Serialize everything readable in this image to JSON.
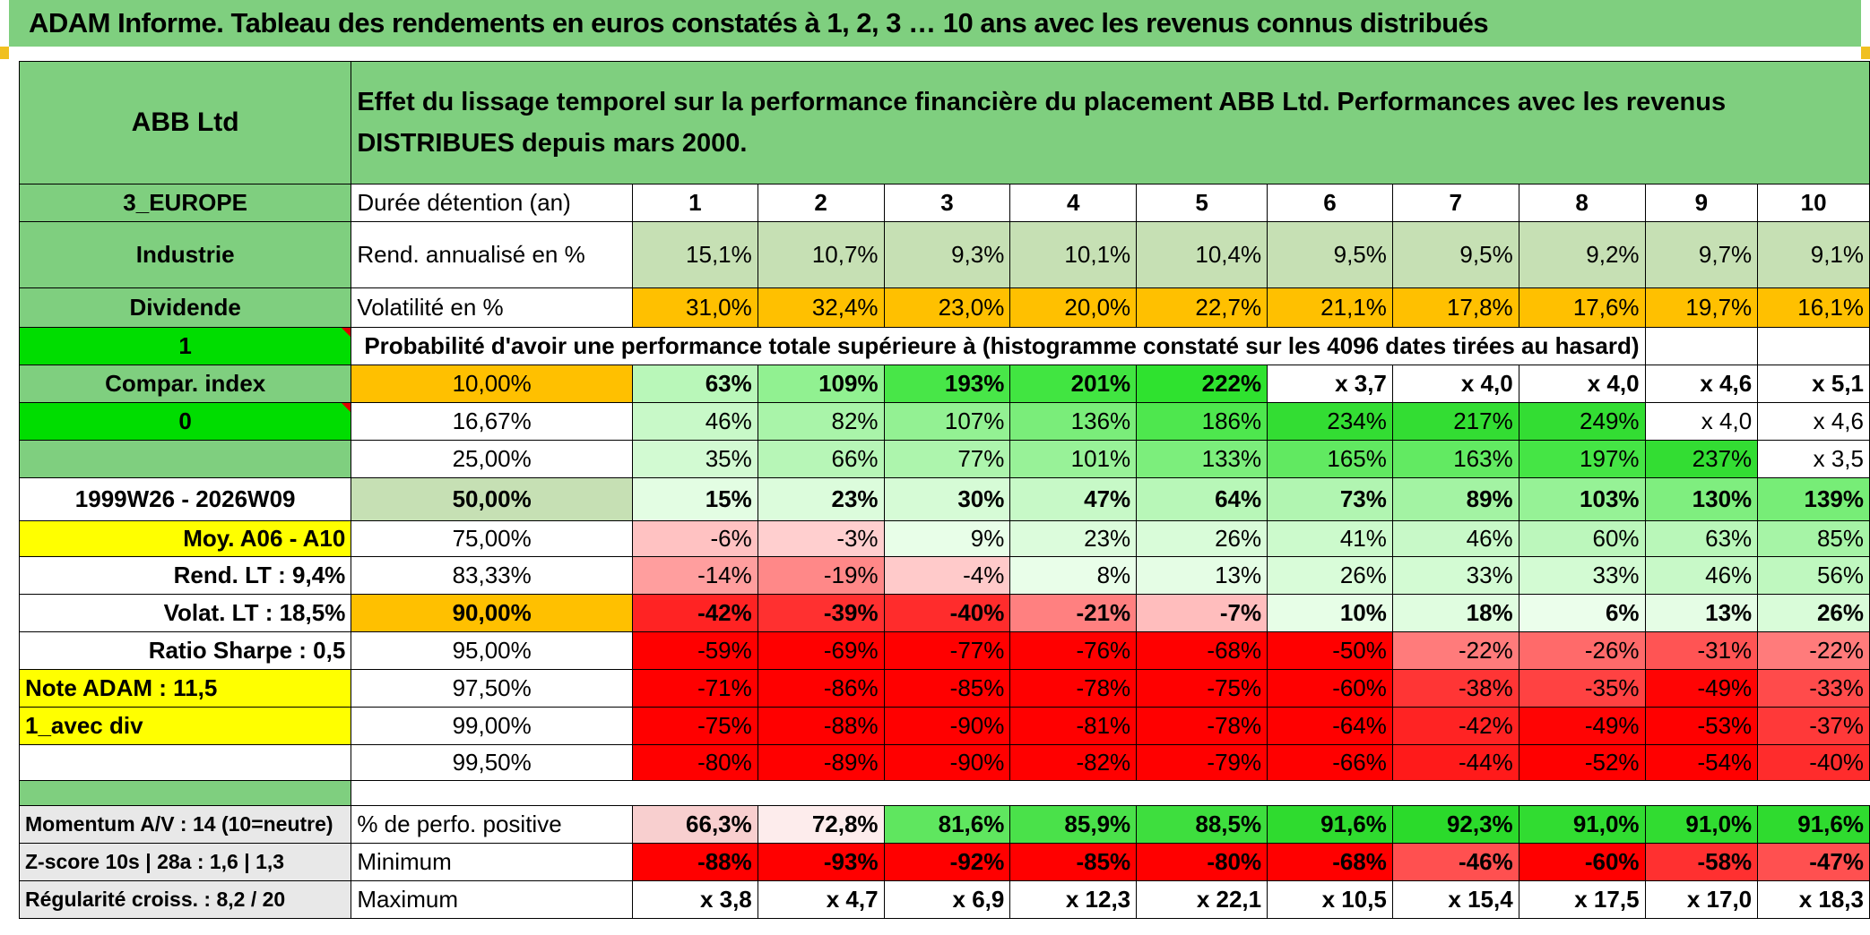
{
  "title": "ADAM Informe. Tableau des rendements en euros constatés à 1, 2, 3 … 10 ans avec les revenus connus distribués",
  "left": {
    "name": "ABB Ltd",
    "region": "3_EUROPE",
    "sector": "Industrie",
    "type": "Dividende",
    "flag1": "1",
    "compar": "Compar. index",
    "flag2": "0",
    "period": "1999W26 - 2026W09",
    "moy": "Moy. A06 - A10",
    "rend_lt": "Rend. LT :   9,4%",
    "volat_lt": "Volat. LT :   18,5%",
    "sharpe": "Ratio Sharpe :   0,5",
    "note": "Note ADAM : 11,5",
    "mode": "1_avec div",
    "momentum": "Momentum A/V : 14 (10=neutre)",
    "zscore": "Z-score 10s | 28a : 1,6 | 1,3",
    "regularite": "Régularité croiss. : 8,2 / 20"
  },
  "header_text": "Effet du lissage temporel sur la performance financière du placement ABB Ltd. Performances avec les revenus DISTRIBUES depuis mars 2000.",
  "labels": {
    "duree": "Durée détention (an)",
    "rend": "Rend. annualisé en %",
    "vol": "Volatilité en %",
    "proba": "Probabilité d'avoir une performance totale supérieure à (histogramme constaté sur les 4096 dates tirées au hasard)",
    "positive": "% de perfo. positive",
    "minimum": "Minimum",
    "maximum": "Maximum"
  },
  "years": [
    "1",
    "2",
    "3",
    "4",
    "5",
    "6",
    "7",
    "8",
    "9",
    "10"
  ],
  "rend": [
    "15,1%",
    "10,7%",
    "9,3%",
    "10,1%",
    "10,4%",
    "9,5%",
    "9,5%",
    "9,2%",
    "9,7%",
    "9,1%"
  ],
  "vol": [
    "31,0%",
    "32,4%",
    "23,0%",
    "20,0%",
    "22,7%",
    "21,1%",
    "17,8%",
    "17,6%",
    "19,7%",
    "16,1%"
  ],
  "prob_rows": [
    {
      "p": "10,00%",
      "vals": [
        "63%",
        "109%",
        "193%",
        "201%",
        "222%",
        "x 3,7",
        "x 4,0",
        "x 4,0",
        "x 4,6",
        "x 5,1"
      ]
    },
    {
      "p": "16,67%",
      "vals": [
        "46%",
        "82%",
        "107%",
        "136%",
        "186%",
        "234%",
        "217%",
        "249%",
        "x 4,0",
        "x 4,6"
      ]
    },
    {
      "p": "25,00%",
      "vals": [
        "35%",
        "66%",
        "77%",
        "101%",
        "133%",
        "165%",
        "163%",
        "197%",
        "237%",
        "x 3,5"
      ]
    },
    {
      "p": "50,00%",
      "vals": [
        "15%",
        "23%",
        "30%",
        "47%",
        "64%",
        "73%",
        "89%",
        "103%",
        "130%",
        "139%"
      ]
    },
    {
      "p": "75,00%",
      "vals": [
        "-6%",
        "-3%",
        "9%",
        "23%",
        "26%",
        "41%",
        "46%",
        "60%",
        "63%",
        "85%"
      ]
    },
    {
      "p": "83,33%",
      "vals": [
        "-14%",
        "-19%",
        "-4%",
        "8%",
        "13%",
        "26%",
        "33%",
        "33%",
        "46%",
        "56%"
      ]
    },
    {
      "p": "90,00%",
      "vals": [
        "-42%",
        "-39%",
        "-40%",
        "-21%",
        "-7%",
        "10%",
        "18%",
        "6%",
        "13%",
        "26%"
      ]
    },
    {
      "p": "95,00%",
      "vals": [
        "-59%",
        "-69%",
        "-77%",
        "-76%",
        "-68%",
        "-50%",
        "-22%",
        "-26%",
        "-31%",
        "-22%"
      ]
    },
    {
      "p": "97,50%",
      "vals": [
        "-71%",
        "-86%",
        "-85%",
        "-78%",
        "-75%",
        "-60%",
        "-38%",
        "-35%",
        "-49%",
        "-33%"
      ]
    },
    {
      "p": "99,00%",
      "vals": [
        "-75%",
        "-88%",
        "-90%",
        "-81%",
        "-78%",
        "-64%",
        "-42%",
        "-49%",
        "-53%",
        "-37%"
      ]
    },
    {
      "p": "99,50%",
      "vals": [
        "-80%",
        "-89%",
        "-90%",
        "-82%",
        "-79%",
        "-66%",
        "-44%",
        "-52%",
        "-54%",
        "-40%"
      ]
    }
  ],
  "positive": [
    "66,3%",
    "72,8%",
    "81,6%",
    "85,9%",
    "88,5%",
    "91,6%",
    "92,3%",
    "91,0%",
    "91,0%",
    "91,6%"
  ],
  "minimum": [
    "-88%",
    "-93%",
    "-92%",
    "-85%",
    "-80%",
    "-68%",
    "-46%",
    "-60%",
    "-58%",
    "-47%"
  ],
  "maximum": [
    "x 3,8",
    "x 4,7",
    "x 6,9",
    "x 12,3",
    "x 22,1",
    "x 10,5",
    "x 15,4",
    "x 17,5",
    "x 17,0",
    "x 18,3"
  ],
  "colors": {
    "band_green": "#7fcf7f",
    "light_green": "#c6e0b4",
    "orange": "#ffc000",
    "bright_green": "#00dd00",
    "yellow": "#ffff00",
    "red": "#ff0000"
  }
}
